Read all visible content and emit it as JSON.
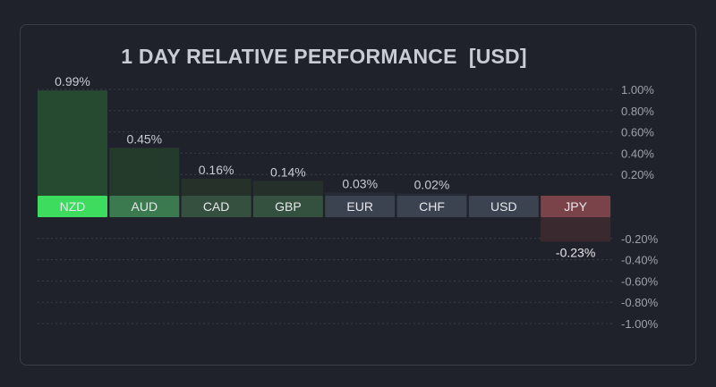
{
  "colors": {
    "background": "#1f222a",
    "grid": "#3a3e48",
    "text": "#c9ccd3",
    "axis_text": "#9da1aa"
  },
  "chart_data": {
    "type": "bar",
    "title": "1 DAY RELATIVE PERFORMANCE  [USD]",
    "ylim": [
      -1.0,
      1.0
    ],
    "y_ticks": [
      "1.00%",
      "0.80%",
      "0.60%",
      "0.40%",
      "0.20%",
      "-0.20%",
      "-0.40%",
      "-0.60%",
      "-0.80%",
      "-1.00%"
    ],
    "y_tick_values": [
      1.0,
      0.8,
      0.6,
      0.4,
      0.2,
      -0.2,
      -0.4,
      -0.6,
      -0.8,
      -1.0
    ],
    "grid": true,
    "categories": [
      "NZD",
      "AUD",
      "CAD",
      "GBP",
      "EUR",
      "CHF",
      "USD",
      "JPY"
    ],
    "values": [
      0.99,
      0.45,
      0.16,
      0.14,
      0.03,
      0.02,
      0,
      -0.23
    ],
    "value_labels": [
      "0.99%",
      "0.45%",
      "0.16%",
      "0.14%",
      "0.03%",
      "0.02%",
      "",
      "-0.23%"
    ],
    "label_colors": [
      "#3ddc5e",
      "#3b7a4e",
      "#35503f",
      "#34503f",
      "#3b4250",
      "#3b4250",
      "#3b4250",
      "#7a434a"
    ],
    "bar_colors": [
      "#254a30",
      "#243b2c",
      "#253129",
      "#25302a",
      "#262c36",
      "#262c36",
      "#262c36",
      "#3a2a30"
    ]
  }
}
